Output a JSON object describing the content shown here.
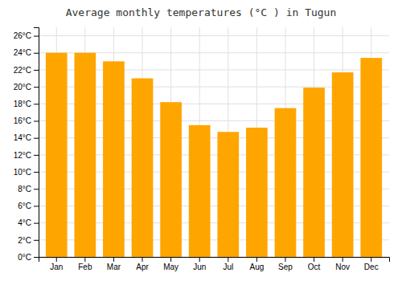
{
  "chart_data": {
    "type": "bar",
    "title": "Average monthly temperatures (°C ) in Tugun",
    "categories": [
      "Jan",
      "Feb",
      "Mar",
      "Apr",
      "May",
      "Jun",
      "Jul",
      "Aug",
      "Sep",
      "Oct",
      "Nov",
      "Dec"
    ],
    "values": [
      24.0,
      24.0,
      23.0,
      21.0,
      18.2,
      15.5,
      14.7,
      15.2,
      17.5,
      19.9,
      21.7,
      23.4
    ],
    "color": "#FFA500",
    "ylim": [
      0,
      27
    ],
    "yticks": [
      {
        "value": 0,
        "label": "0°C"
      },
      {
        "value": 2,
        "label": "2°C"
      },
      {
        "value": 4,
        "label": "4°C"
      },
      {
        "value": 6,
        "label": "6°C"
      },
      {
        "value": 8,
        "label": "8°C"
      },
      {
        "value": 10,
        "label": "10°C"
      },
      {
        "value": 12,
        "label": "12°C"
      },
      {
        "value": 14,
        "label": "14°C"
      },
      {
        "value": 16,
        "label": "16°C"
      },
      {
        "value": 18,
        "label": "18°C"
      },
      {
        "value": 20,
        "label": "20°C"
      },
      {
        "value": 22,
        "label": "22°C"
      },
      {
        "value": 24,
        "label": "24°C"
      },
      {
        "value": 26,
        "label": "26°C"
      }
    ],
    "grid": true
  }
}
